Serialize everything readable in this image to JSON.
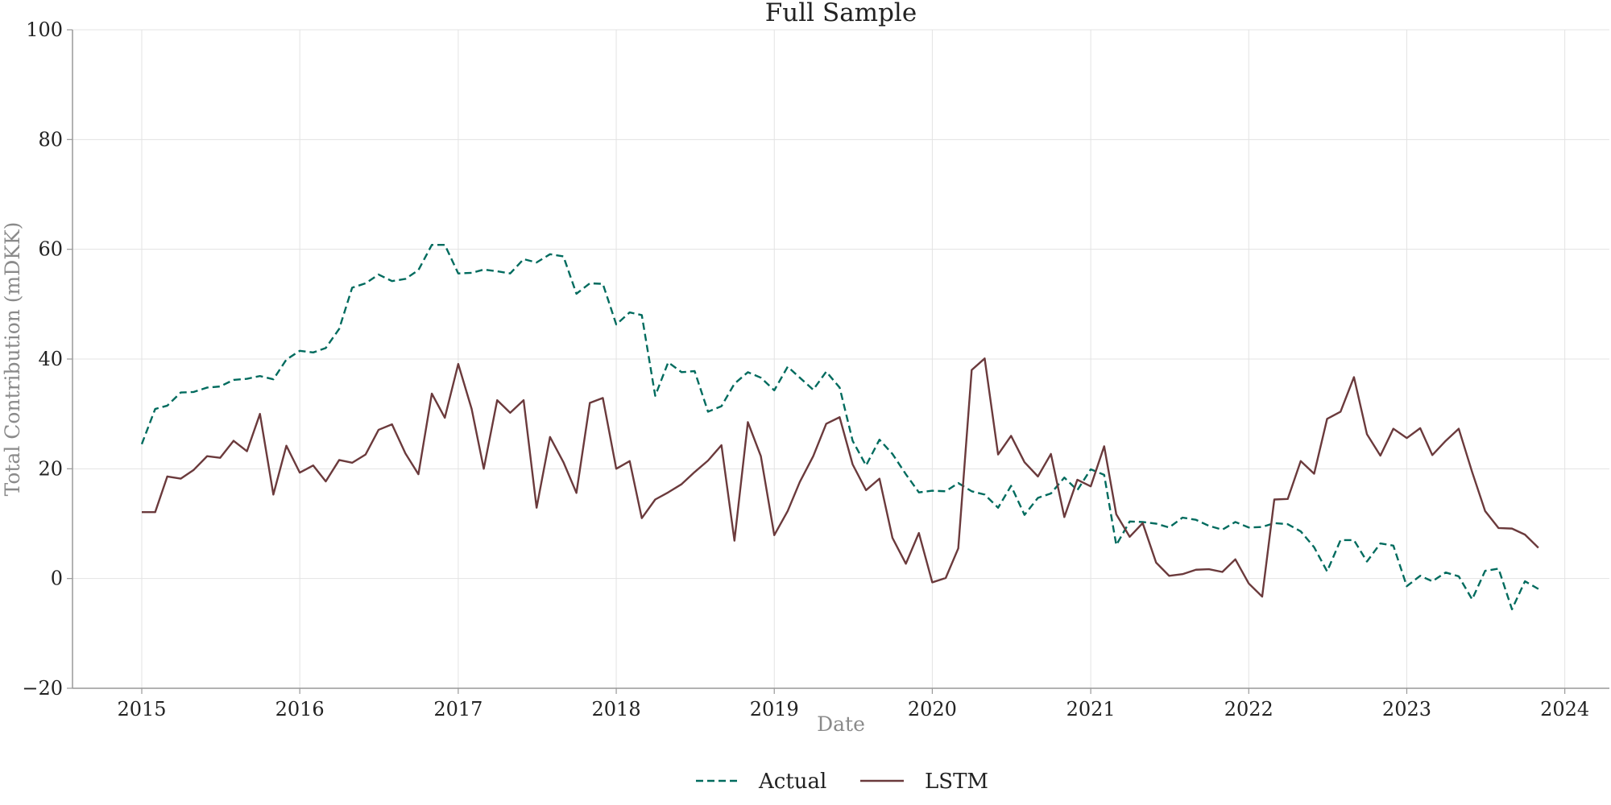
{
  "chart_data": {
    "type": "line",
    "title": "Full Sample",
    "xlabel": "Date",
    "ylabel": "Total Contribution (mDKK)",
    "ylim": [
      -20,
      100
    ],
    "y_ticks": [
      -20,
      0,
      20,
      40,
      60,
      80,
      100
    ],
    "y_tick_labels": [
      "−20",
      "0",
      "20",
      "40",
      "60",
      "80",
      "100"
    ],
    "xlim": [
      "2014-07-25",
      "2024-04-13"
    ],
    "x_ticks": [
      "2015-01-01",
      "2016-01-01",
      "2017-01-01",
      "2018-01-01",
      "2019-01-01",
      "2020-01-01",
      "2021-01-01",
      "2022-01-01",
      "2023-01-01",
      "2024-01-01"
    ],
    "x_tick_labels": [
      "2015",
      "2016",
      "2017",
      "2018",
      "2019",
      "2020",
      "2021",
      "2022",
      "2023",
      "2024"
    ],
    "grid": true,
    "legend_position": "bottom-center",
    "x": [
      "2015-01",
      "2015-02",
      "2015-03",
      "2015-04",
      "2015-05",
      "2015-06",
      "2015-07",
      "2015-08",
      "2015-09",
      "2015-10",
      "2015-11",
      "2015-12",
      "2016-01",
      "2016-02",
      "2016-03",
      "2016-04",
      "2016-05",
      "2016-06",
      "2016-07",
      "2016-08",
      "2016-09",
      "2016-10",
      "2016-11",
      "2016-12",
      "2017-01",
      "2017-02",
      "2017-03",
      "2017-04",
      "2017-05",
      "2017-06",
      "2017-07",
      "2017-08",
      "2017-09",
      "2017-10",
      "2017-11",
      "2017-12",
      "2018-01",
      "2018-02",
      "2018-03",
      "2018-04",
      "2018-05",
      "2018-06",
      "2018-07",
      "2018-08",
      "2018-09",
      "2018-10",
      "2018-11",
      "2018-12",
      "2019-01",
      "2019-02",
      "2019-03",
      "2019-04",
      "2019-05",
      "2019-06",
      "2019-07",
      "2019-08",
      "2019-09",
      "2019-10",
      "2019-11",
      "2019-12",
      "2020-01",
      "2020-02",
      "2020-03",
      "2020-04",
      "2020-05",
      "2020-06",
      "2020-07",
      "2020-08",
      "2020-09",
      "2020-10",
      "2020-11",
      "2020-12",
      "2021-01",
      "2021-02",
      "2021-03",
      "2021-04",
      "2021-05",
      "2021-06",
      "2021-07",
      "2021-08",
      "2021-09",
      "2021-10",
      "2021-11",
      "2021-12",
      "2022-01",
      "2022-02",
      "2022-03",
      "2022-04",
      "2022-05",
      "2022-06",
      "2022-07",
      "2022-08",
      "2022-09",
      "2022-10",
      "2022-11",
      "2022-12",
      "2023-01",
      "2023-02",
      "2023-03",
      "2023-04",
      "2023-05",
      "2023-06",
      "2023-07",
      "2023-08",
      "2023-09",
      "2023-10",
      "2023-11"
    ],
    "series": [
      {
        "name": "Actual",
        "color": "#006b5e",
        "style": "dashed",
        "values": [
          24.5,
          30.9,
          31.5,
          33.9,
          34.0,
          34.8,
          35.0,
          36.2,
          36.4,
          36.9,
          36.3,
          39.9,
          41.5,
          41.2,
          42.0,
          45.5,
          53.0,
          53.8,
          55.4,
          54.2,
          54.6,
          56.2,
          60.8,
          60.8,
          55.6,
          55.7,
          56.3,
          56.0,
          55.6,
          58.2,
          57.6,
          59.1,
          58.7,
          51.9,
          53.8,
          53.7,
          46.3,
          48.5,
          48.0,
          33.3,
          39.4,
          37.6,
          37.8,
          30.4,
          31.4,
          35.5,
          37.6,
          36.6,
          34.3,
          38.6,
          36.6,
          34.4,
          37.7,
          34.8,
          25.1,
          20.6,
          25.3,
          22.7,
          19.0,
          15.7,
          16.0,
          15.9,
          17.4,
          15.9,
          15.3,
          12.9,
          16.9,
          11.6,
          14.7,
          15.5,
          18.4,
          16.1,
          19.9,
          18.9,
          6.1,
          10.4,
          10.3,
          10.0,
          9.3,
          11.1,
          10.7,
          9.6,
          8.9,
          10.3,
          9.3,
          9.4,
          10.1,
          9.9,
          8.6,
          5.7,
          1.3,
          7.0,
          7.0,
          3.1,
          6.4,
          6.0,
          -1.4,
          0.5,
          -0.5,
          1.1,
          0.4,
          -3.8,
          1.4,
          1.8,
          -5.6,
          -0.5,
          -1.9
        ]
      },
      {
        "name": "LSTM",
        "color": "#6b3a3c",
        "style": "solid",
        "values": [
          12.1,
          12.1,
          18.6,
          18.2,
          19.8,
          22.3,
          22.0,
          25.1,
          23.2,
          30.0,
          15.3,
          24.2,
          19.3,
          20.6,
          17.7,
          21.6,
          21.1,
          22.6,
          27.1,
          28.1,
          22.8,
          19.0,
          33.7,
          29.3,
          39.1,
          30.9,
          20.0,
          32.5,
          30.2,
          32.5,
          12.9,
          25.8,
          21.2,
          15.6,
          32.0,
          32.9,
          20.0,
          21.4,
          11.0,
          14.4,
          15.7,
          17.2,
          19.4,
          21.5,
          24.3,
          6.9,
          28.5,
          22.3,
          7.9,
          12.3,
          17.6,
          22.3,
          28.2,
          29.4,
          20.8,
          16.1,
          18.2,
          7.4,
          2.7,
          8.3,
          -0.7,
          0.1,
          5.5,
          38.0,
          40.1,
          22.6,
          26.0,
          21.2,
          18.6,
          22.7,
          11.2,
          18.0,
          16.8,
          24.1,
          11.7,
          7.6,
          10.1,
          2.9,
          0.5,
          0.8,
          1.6,
          1.7,
          1.2,
          3.5,
          -0.9,
          -3.3,
          14.4,
          14.5,
          21.4,
          19.1,
          29.1,
          30.4,
          36.7,
          26.3,
          22.4,
          27.3,
          25.6,
          27.4,
          22.5,
          25.1,
          27.3,
          19.4,
          12.3,
          9.2,
          9.1,
          8.0,
          5.6
        ]
      }
    ]
  }
}
